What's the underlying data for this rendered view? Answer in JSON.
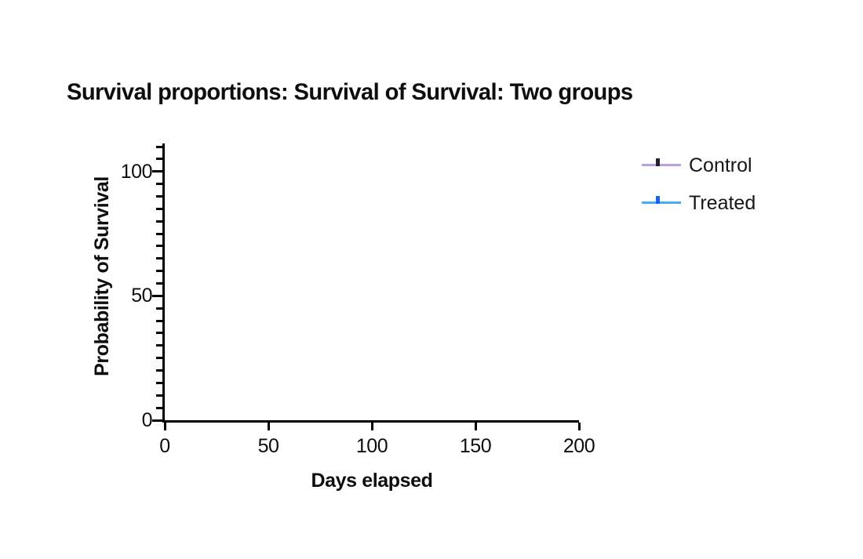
{
  "page": {
    "background": "#ffffff"
  },
  "chart_data": {
    "type": "line",
    "chart_style": "kaplan-meier-survival",
    "title": "Survival proportions: Survival of Survival: Two groups",
    "xlabel": "Days elapsed",
    "ylabel": "Probability of Survival",
    "xlim": [
      0,
      200
    ],
    "ylim": [
      0,
      110
    ],
    "xticks": [
      0,
      50,
      100,
      150,
      200
    ],
    "xtick_labels": [
      "0",
      "50",
      "100",
      "150",
      "200"
    ],
    "yticks": [
      0,
      50,
      100
    ],
    "ytick_labels": [
      "0",
      "50",
      "100"
    ],
    "y_minor_tick_step": 5,
    "grid": false,
    "legend_position": "right-of-plot",
    "axis_color": "#000000",
    "text_color": "#0d0d0d",
    "series": [
      {
        "name": "Control",
        "line_color": "#b5a2e0",
        "censor_tick_color": "#262030",
        "x": [],
        "y": []
      },
      {
        "name": "Treated",
        "line_color": "#47adf5",
        "censor_tick_color": "#1b63ee",
        "x": [],
        "y": []
      }
    ]
  }
}
